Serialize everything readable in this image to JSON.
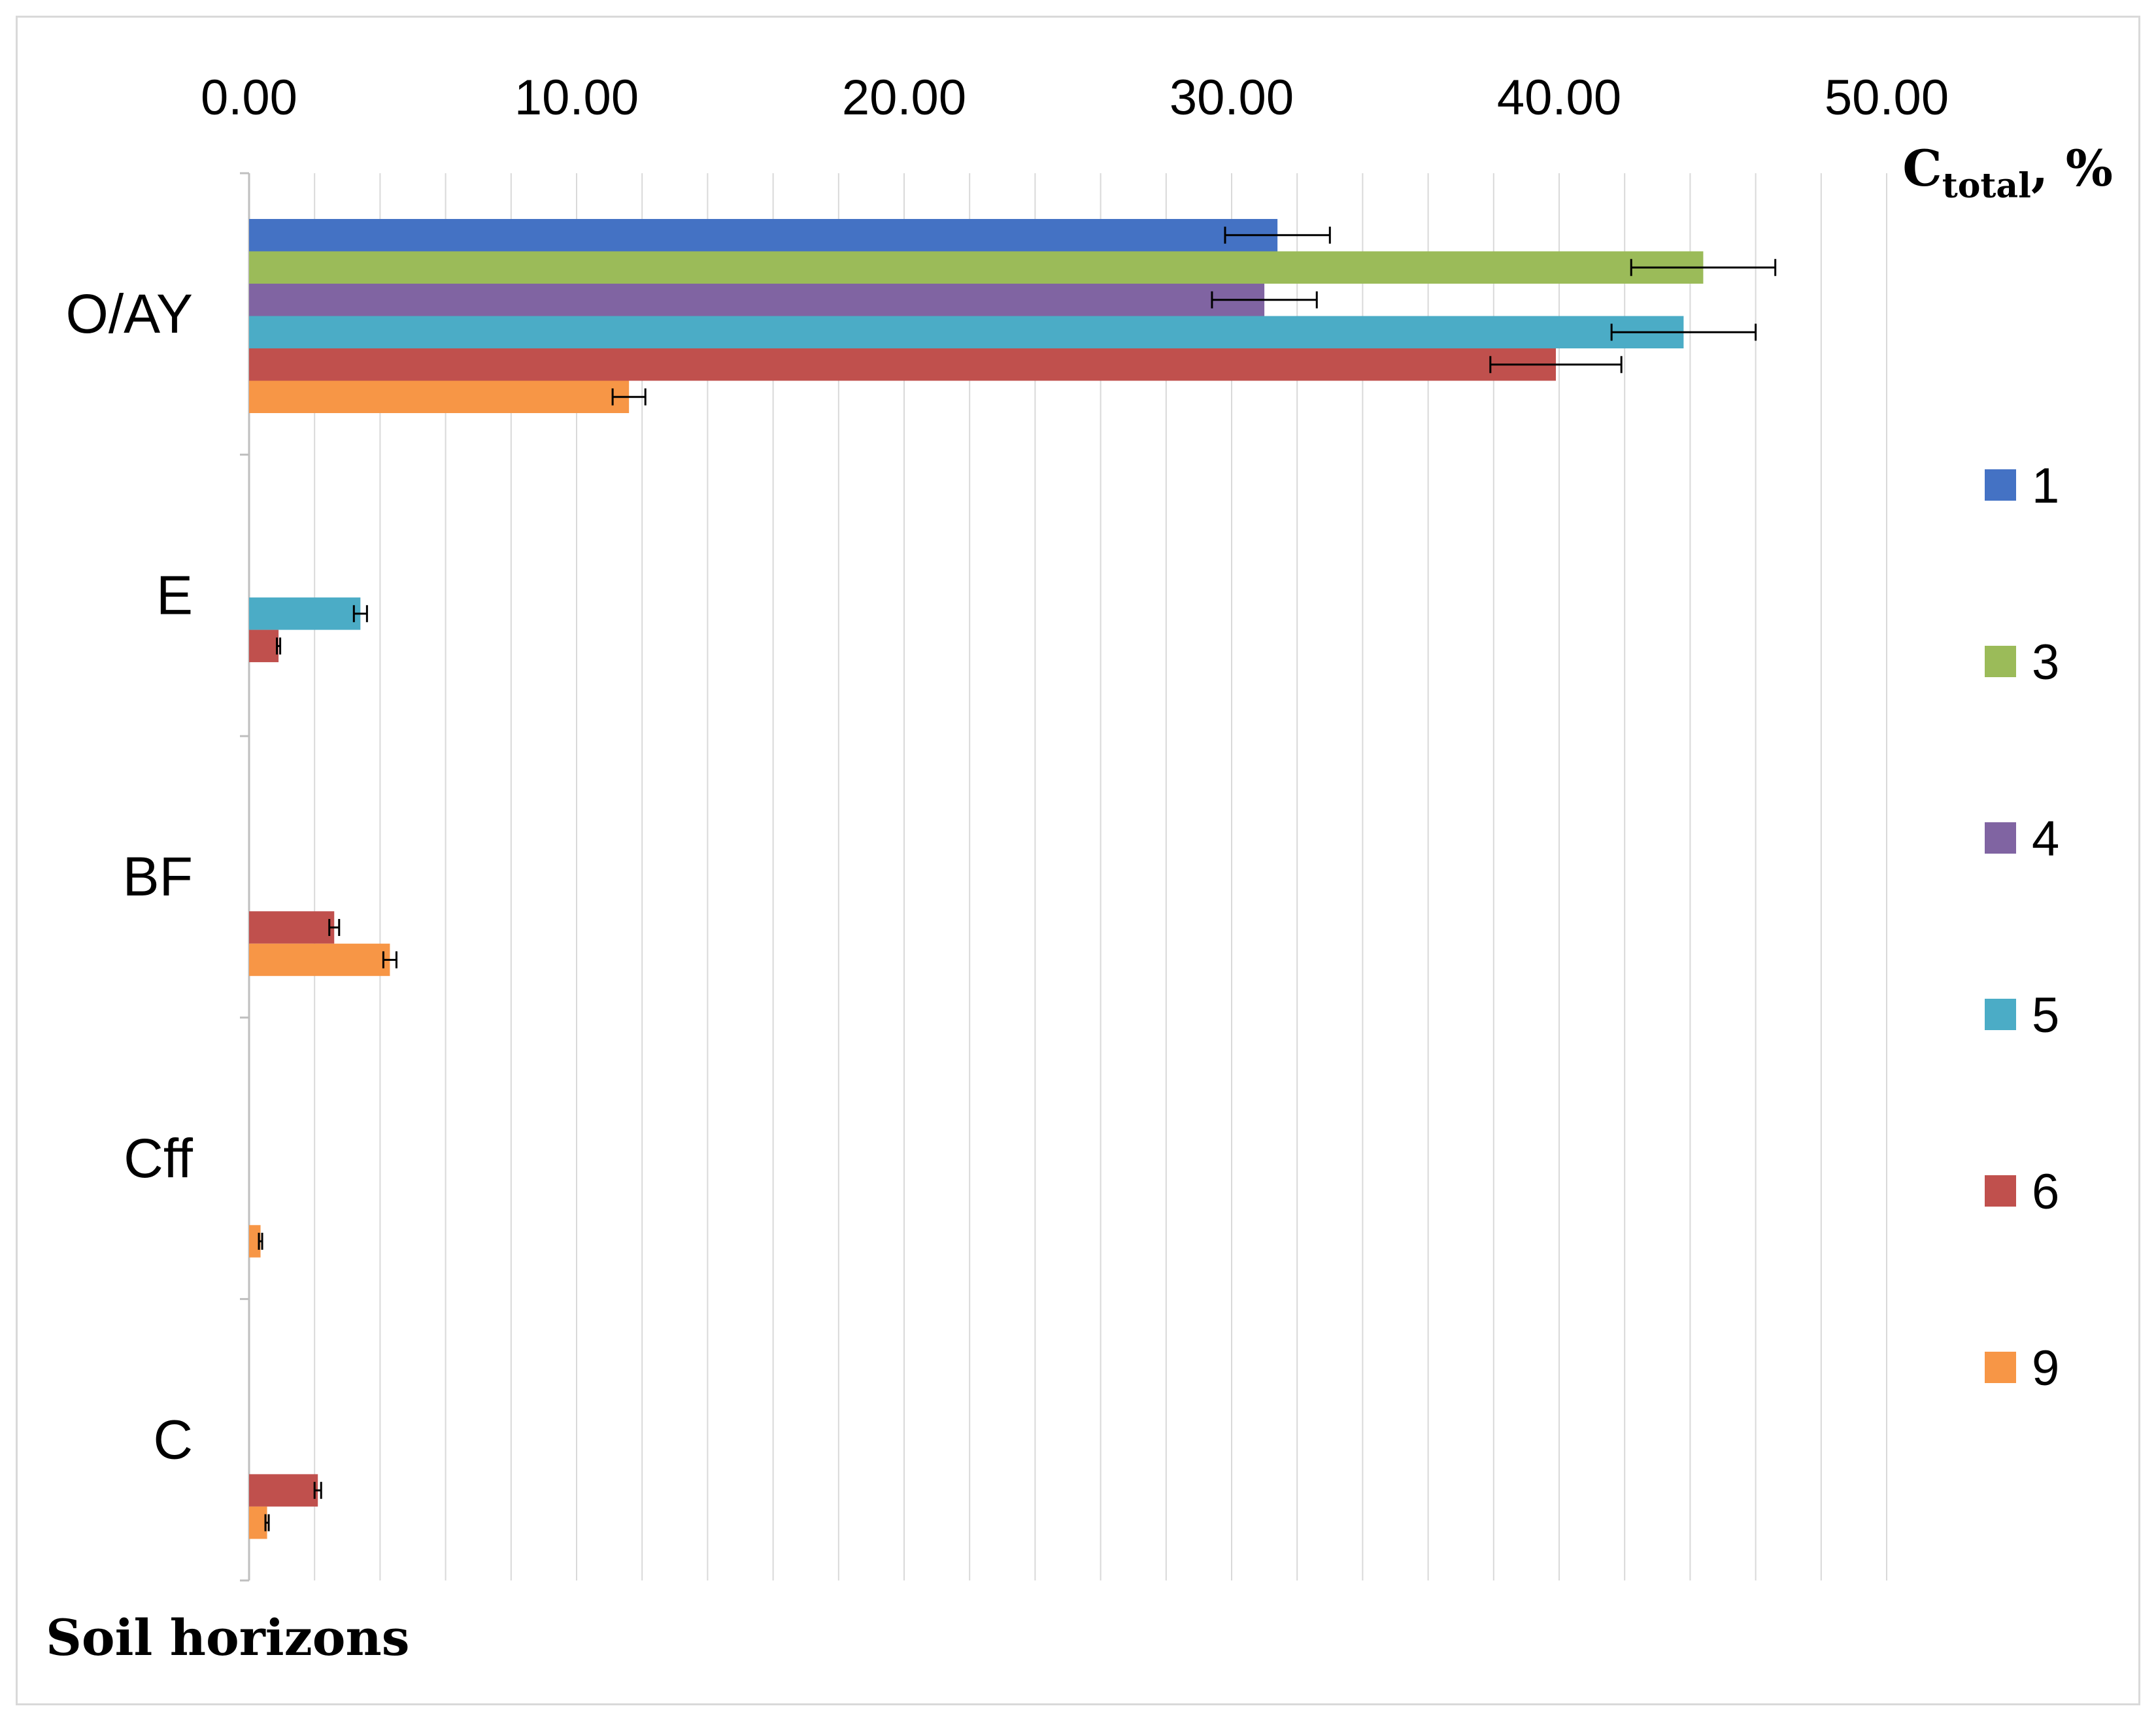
{
  "chart_data": {
    "type": "bar",
    "orientation": "horizontal",
    "title": "",
    "xlabel_main": "C",
    "xlabel_sub": "total",
    "xlabel_suffix": ", %",
    "ylabel": "Soil horizons",
    "xlim": [
      0,
      55
    ],
    "xticks": [
      "0.00",
      "10.00",
      "20.00",
      "30.00",
      "40.00",
      "50.00"
    ],
    "xtick_values": [
      0,
      10,
      20,
      30,
      40,
      50
    ],
    "x_axis_position": "top",
    "grid": "vertical",
    "legend_position": "right",
    "categories": [
      "O/AY",
      "E",
      "BF",
      "Cff",
      "C"
    ],
    "series": [
      {
        "name": "1",
        "color": "#4472c4",
        "values": [
          31.4,
          null,
          null,
          null,
          null
        ],
        "errors": [
          1.6,
          null,
          null,
          null,
          null
        ]
      },
      {
        "name": "3",
        "color": "#9bbb59",
        "values": [
          44.4,
          null,
          null,
          null,
          null
        ],
        "errors": [
          2.2,
          null,
          null,
          null,
          null
        ]
      },
      {
        "name": "4",
        "color": "#8064a2",
        "values": [
          31.0,
          null,
          null,
          null,
          null
        ],
        "errors": [
          1.6,
          null,
          null,
          null,
          null
        ]
      },
      {
        "name": "5",
        "color": "#4bacc6",
        "values": [
          43.8,
          3.4,
          null,
          null,
          null
        ],
        "errors": [
          2.2,
          0.2,
          null,
          null,
          null
        ]
      },
      {
        "name": "6",
        "color": "#c0504d",
        "values": [
          39.9,
          0.9,
          2.6,
          null,
          2.1
        ],
        "errors": [
          2.0,
          0.05,
          0.15,
          null,
          0.1
        ]
      },
      {
        "name": "9",
        "color": "#f79646",
        "values": [
          11.6,
          null,
          4.3,
          0.35,
          0.55
        ],
        "errors": [
          0.5,
          null,
          0.2,
          0.05,
          0.05
        ]
      }
    ]
  }
}
